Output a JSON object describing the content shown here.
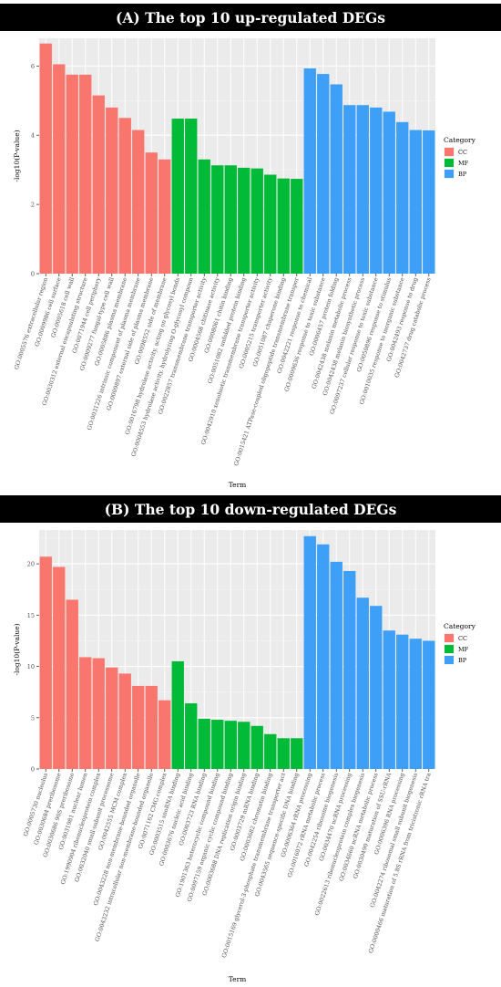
{
  "chart_data": [
    {
      "type": "bar",
      "title": "(A) The top 10 up-regulated DEGs",
      "xlabel": "Term",
      "ylabel": "-log10(P-value)",
      "ylim": [
        0,
        6.8
      ],
      "yticks": [
        0,
        2,
        4,
        6
      ],
      "grid": true,
      "legend": {
        "title": "Category",
        "position": "right"
      },
      "categories": [
        "GO:0005576 extracellular region",
        "GO:0009986 cell surface",
        "GO:0005618 cell wall",
        "GO:0030312 external encapsulating structure",
        "GO:0071944 cell periphery",
        "GO:0009277 fungal-type cell wall",
        "GO:0005886 plasma membrane",
        "GO:0031226 intrinsic component of plasma membrane",
        "GO:0009897 external side of plasma membrane",
        "GO:0098552 side of membrane",
        "GO:0016798 hydrolase activity, acting on glycosyl bonds",
        "GO:0004553 hydrolase activity, hydrolyzing O-glycosyl compoun",
        "GO:0022857 transmembrane transporter activity",
        "GO:0004568 chitinase activity",
        "GO:0008061 chitin binding",
        "GO:0051082 unfolded protein binding",
        "GO:0042910 xenobiotic transmembrane transporter activity",
        "GO:0005215 transporter activity",
        "GO:0051087 chaperone binding",
        "GO:0015421 ATPase-coupled oligopeptide transmembrane transpor",
        "GO:0042221 response to chemical",
        "GO:0009636 response to toxic substance",
        "GO:0006457 protein folding",
        "GO:0042438 melanin metabolic process",
        "GO:0042438 melanin biosynthetic process",
        "GO:0097237 cellular response to toxic substance",
        "GO:0050896 response to stimulus",
        "GO:0010035 response to inorganic substance",
        "GO:0042493 response to drug",
        "GO:0042737 drug catabolic process"
      ],
      "values": [
        6.65,
        6.05,
        5.75,
        5.75,
        5.15,
        4.8,
        4.5,
        4.15,
        3.5,
        3.3,
        4.48,
        4.48,
        3.3,
        3.13,
        3.13,
        3.06,
        3.04,
        2.86,
        2.75,
        2.74,
        5.93,
        5.77,
        5.47,
        4.87,
        4.87,
        4.8,
        4.68,
        4.38,
        4.15,
        4.14
      ],
      "category_groups": [
        "CC",
        "CC",
        "CC",
        "CC",
        "CC",
        "CC",
        "CC",
        "CC",
        "CC",
        "CC",
        "MF",
        "MF",
        "MF",
        "MF",
        "MF",
        "MF",
        "MF",
        "MF",
        "MF",
        "MF",
        "BP",
        "BP",
        "BP",
        "BP",
        "BP",
        "BP",
        "BP",
        "BP",
        "BP",
        "BP"
      ],
      "series": [
        {
          "name": "CC",
          "color": "#F8766D"
        },
        {
          "name": "MF",
          "color": "#00BA38"
        },
        {
          "name": "BP",
          "color": "#3D9FF5"
        }
      ]
    },
    {
      "type": "bar",
      "title": "(B) The top 10 down-regulated DEGs",
      "xlabel": "Term",
      "ylabel": "-log10(P-value)",
      "ylim": [
        0,
        23.3
      ],
      "yticks": [
        0,
        5,
        10,
        15,
        20
      ],
      "grid": true,
      "legend": {
        "title": "Category",
        "position": "right"
      },
      "categories": [
        "GO:0005730 nucleolus",
        "GO:0030684 preribosome",
        "GO:0030686 90S preribosome",
        "GO:0031981 nuclear lumen",
        "GO:1990904 ribonucleoprotein complex",
        "GO:0032040 small-subunit processome",
        "GO:0042555 MCM complex",
        "GO:0043228 non-membrane-bounded organelle",
        "GO:0043232 intracellular non-membrane-bounded organelle",
        "GO:0071162 CMG complex",
        "GO:0003515 snoRNA binding",
        "GO:0003676 nucleic acid binding",
        "GO:0003723 RNA binding",
        "GO:1901363 heterocyclic compound binding",
        "GO:0097159 organic cyclic compound binding",
        "GO:0003688 DNA replication origin binding",
        "GO:0003729 mRNA binding",
        "GO:0003682 chromatin binding",
        "GO:0015169 glycerol-3-phosphate transmembrane transporter act",
        "GO:0043565 sequence-specific DNA binding",
        "GO:0006364 rRNA processing",
        "GO:0016072 rRNA metabolic process",
        "GO:0042254 ribosome biogenesis",
        "GO:0034470 ncRNA processing",
        "GO:0022613 ribonucleoprotein complex biogenesis",
        "GO:0034660 ncRNA metabolic process",
        "GO:0030490 maturation of SSU-rRNA",
        "GO:0006396 RNA processing",
        "GO:0042274 ribosomal small subunit biogenesis",
        "GO:0000466 maturation of 5.8S rRNA from tricistronic rRNA tra"
      ],
      "values": [
        20.7,
        19.7,
        16.5,
        10.9,
        10.8,
        9.9,
        9.3,
        8.1,
        8.1,
        6.7,
        10.5,
        6.4,
        4.9,
        4.8,
        4.7,
        4.6,
        4.2,
        3.4,
        3.0,
        3.0,
        22.7,
        21.9,
        20.2,
        19.3,
        16.7,
        15.9,
        13.5,
        13.1,
        12.7,
        12.5
      ],
      "category_groups": [
        "CC",
        "CC",
        "CC",
        "CC",
        "CC",
        "CC",
        "CC",
        "CC",
        "CC",
        "CC",
        "MF",
        "MF",
        "MF",
        "MF",
        "MF",
        "MF",
        "MF",
        "MF",
        "MF",
        "MF",
        "BP",
        "BP",
        "BP",
        "BP",
        "BP",
        "BP",
        "BP",
        "BP",
        "BP",
        "BP"
      ],
      "series": [
        {
          "name": "CC",
          "color": "#F8766D"
        },
        {
          "name": "MF",
          "color": "#00BA38"
        },
        {
          "name": "BP",
          "color": "#3D9FF5"
        }
      ]
    }
  ]
}
